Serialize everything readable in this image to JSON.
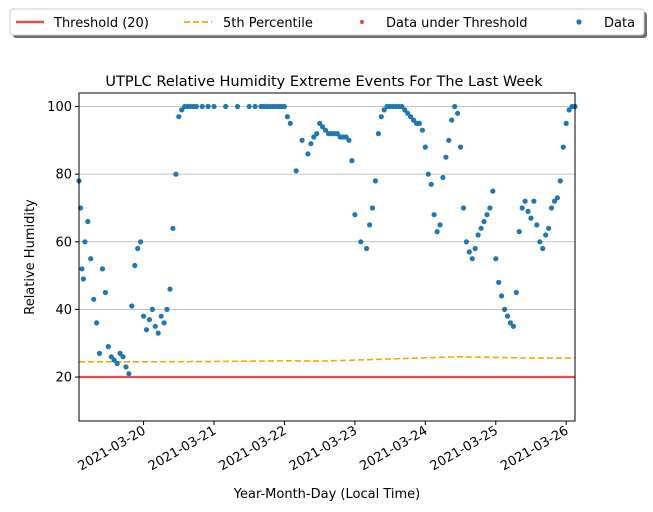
{
  "chart_data": {
    "type": "scatter",
    "title": "UTPLC Relative Humidity Extreme Events For The Last Week",
    "xlabel": "Year-Month-Day (Local Time)",
    "ylabel": "Relative Humidity",
    "xlim": [
      "2021-03-19T02:00",
      "2021-03-26T03:00"
    ],
    "ylim": [
      7,
      104
    ],
    "grid": "horizontal",
    "legend_position": "top",
    "x_ticks": [
      "2021-03-20",
      "2021-03-21",
      "2021-03-22",
      "2021-03-23",
      "2021-03-24",
      "2021-03-25",
      "2021-03-26"
    ],
    "y_ticks": [
      20,
      40,
      60,
      80,
      100
    ],
    "series": [
      {
        "name": "Threshold (20)",
        "kind": "line",
        "style": "solid",
        "color": "#e84c4c",
        "x": [
          "2021-03-19T02:00",
          "2021-03-26T03:00"
        ],
        "values": [
          20,
          20
        ]
      },
      {
        "name": "5th Percentile",
        "kind": "line",
        "style": "dashed",
        "color": "#ffa500",
        "x": [
          "2021-03-19T02:00",
          "2021-03-20T00:00",
          "2021-03-21T00:00",
          "2021-03-22T00:00",
          "2021-03-22T12:00",
          "2021-03-23T00:00",
          "2021-03-24T00:00",
          "2021-03-24T12:00",
          "2021-03-25T00:00",
          "2021-03-25T12:00",
          "2021-03-26T03:00"
        ],
        "values": [
          24.5,
          24.5,
          24.6,
          24.8,
          24.7,
          25.0,
          25.7,
          26.0,
          25.8,
          25.6,
          25.6
        ]
      },
      {
        "name": "Data under Threshold",
        "kind": "scatter",
        "color": "#d9534f",
        "x": [],
        "values": []
      },
      {
        "name": "Data",
        "kind": "scatter",
        "color": "#1f77b4",
        "x": [
          "2021-03-19T02:00",
          "2021-03-19T02:30",
          "2021-03-19T03:00",
          "2021-03-19T03:30",
          "2021-03-19T04:00",
          "2021-03-19T05:00",
          "2021-03-19T06:00",
          "2021-03-19T07:00",
          "2021-03-19T08:00",
          "2021-03-19T09:00",
          "2021-03-19T10:00",
          "2021-03-19T11:00",
          "2021-03-19T12:00",
          "2021-03-19T13:00",
          "2021-03-19T14:00",
          "2021-03-19T15:00",
          "2021-03-19T16:00",
          "2021-03-19T17:00",
          "2021-03-19T18:00",
          "2021-03-19T19:00",
          "2021-03-19T20:00",
          "2021-03-19T21:00",
          "2021-03-19T22:00",
          "2021-03-19T23:00",
          "2021-03-20T00:00",
          "2021-03-20T01:00",
          "2021-03-20T02:00",
          "2021-03-20T03:00",
          "2021-03-20T04:00",
          "2021-03-20T05:00",
          "2021-03-20T06:00",
          "2021-03-20T07:00",
          "2021-03-20T08:00",
          "2021-03-20T09:00",
          "2021-03-20T10:00",
          "2021-03-20T11:00",
          "2021-03-20T12:00",
          "2021-03-20T13:00",
          "2021-03-20T14:00",
          "2021-03-20T15:00",
          "2021-03-20T16:00",
          "2021-03-20T17:00",
          "2021-03-20T18:00",
          "2021-03-20T20:00",
          "2021-03-20T22:00",
          "2021-03-21T00:00",
          "2021-03-21T04:00",
          "2021-03-21T08:00",
          "2021-03-21T12:00",
          "2021-03-21T14:00",
          "2021-03-21T16:00",
          "2021-03-21T17:00",
          "2021-03-21T18:00",
          "2021-03-21T19:00",
          "2021-03-21T20:00",
          "2021-03-21T21:00",
          "2021-03-21T22:00",
          "2021-03-21T23:00",
          "2021-03-22T00:00",
          "2021-03-22T01:00",
          "2021-03-22T02:00",
          "2021-03-22T04:00",
          "2021-03-22T06:00",
          "2021-03-22T08:00",
          "2021-03-22T09:00",
          "2021-03-22T10:00",
          "2021-03-22T11:00",
          "2021-03-22T12:00",
          "2021-03-22T13:00",
          "2021-03-22T14:00",
          "2021-03-22T15:00",
          "2021-03-22T16:00",
          "2021-03-22T17:00",
          "2021-03-22T18:00",
          "2021-03-22T19:00",
          "2021-03-22T20:00",
          "2021-03-22T21:00",
          "2021-03-22T22:00",
          "2021-03-22T23:00",
          "2021-03-23T00:00",
          "2021-03-23T02:00",
          "2021-03-23T04:00",
          "2021-03-23T05:00",
          "2021-03-23T06:00",
          "2021-03-23T07:00",
          "2021-03-23T08:00",
          "2021-03-23T09:00",
          "2021-03-23T10:00",
          "2021-03-23T11:00",
          "2021-03-23T12:00",
          "2021-03-23T13:00",
          "2021-03-23T14:00",
          "2021-03-23T15:00",
          "2021-03-23T16:00",
          "2021-03-23T17:00",
          "2021-03-23T18:00",
          "2021-03-23T19:00",
          "2021-03-23T20:00",
          "2021-03-23T21:00",
          "2021-03-23T22:00",
          "2021-03-23T23:00",
          "2021-03-24T00:00",
          "2021-03-24T01:00",
          "2021-03-24T02:00",
          "2021-03-24T03:00",
          "2021-03-24T04:00",
          "2021-03-24T05:00",
          "2021-03-24T06:00",
          "2021-03-24T07:00",
          "2021-03-24T08:00",
          "2021-03-24T09:00",
          "2021-03-24T10:00",
          "2021-03-24T11:00",
          "2021-03-24T12:00",
          "2021-03-24T13:00",
          "2021-03-24T14:00",
          "2021-03-24T15:00",
          "2021-03-24T16:00",
          "2021-03-24T17:00",
          "2021-03-24T18:00",
          "2021-03-24T19:00",
          "2021-03-24T20:00",
          "2021-03-24T21:00",
          "2021-03-24T22:00",
          "2021-03-24T23:00",
          "2021-03-25T00:00",
          "2021-03-25T01:00",
          "2021-03-25T02:00",
          "2021-03-25T03:00",
          "2021-03-25T04:00",
          "2021-03-25T05:00",
          "2021-03-25T06:00",
          "2021-03-25T07:00",
          "2021-03-25T08:00",
          "2021-03-25T09:00",
          "2021-03-25T10:00",
          "2021-03-25T11:00",
          "2021-03-25T12:00",
          "2021-03-25T13:00",
          "2021-03-25T14:00",
          "2021-03-25T15:00",
          "2021-03-25T16:00",
          "2021-03-25T17:00",
          "2021-03-25T18:00",
          "2021-03-25T19:00",
          "2021-03-25T20:00",
          "2021-03-25T21:00",
          "2021-03-25T22:00",
          "2021-03-25T23:00",
          "2021-03-26T00:00",
          "2021-03-26T01:00",
          "2021-03-26T02:00",
          "2021-03-26T03:00"
        ],
        "values": [
          78,
          70,
          52,
          49,
          60,
          66,
          55,
          43,
          36,
          27,
          52,
          45,
          29,
          26,
          25,
          24,
          27,
          26,
          23,
          21,
          41,
          53,
          58,
          60,
          38,
          34,
          37,
          40,
          35,
          33,
          38,
          36,
          40,
          46,
          64,
          80,
          97,
          99,
          100,
          100,
          100,
          100,
          100,
          100,
          100,
          100,
          100,
          100,
          100,
          100,
          100,
          100,
          100,
          100,
          100,
          100,
          100,
          100,
          100,
          97,
          95,
          81,
          90,
          86,
          89,
          91,
          92,
          95,
          94,
          93,
          92,
          92,
          92,
          92,
          91,
          91,
          91,
          90,
          84,
          68,
          60,
          58,
          65,
          70,
          78,
          92,
          97,
          99,
          100,
          100,
          100,
          100,
          100,
          100,
          99,
          98,
          97,
          96,
          95,
          95,
          93,
          88,
          80,
          77,
          68,
          63,
          65,
          79,
          85,
          90,
          96,
          100,
          98,
          88,
          70,
          60,
          57,
          55,
          58,
          62,
          64,
          66,
          68,
          70,
          75,
          55,
          48,
          44,
          40,
          38,
          36,
          35,
          45,
          63,
          70,
          72,
          69,
          67,
          72,
          65,
          60,
          58,
          62,
          64,
          70,
          72,
          73,
          78,
          88,
          95,
          99,
          100,
          100
        ]
      }
    ]
  }
}
